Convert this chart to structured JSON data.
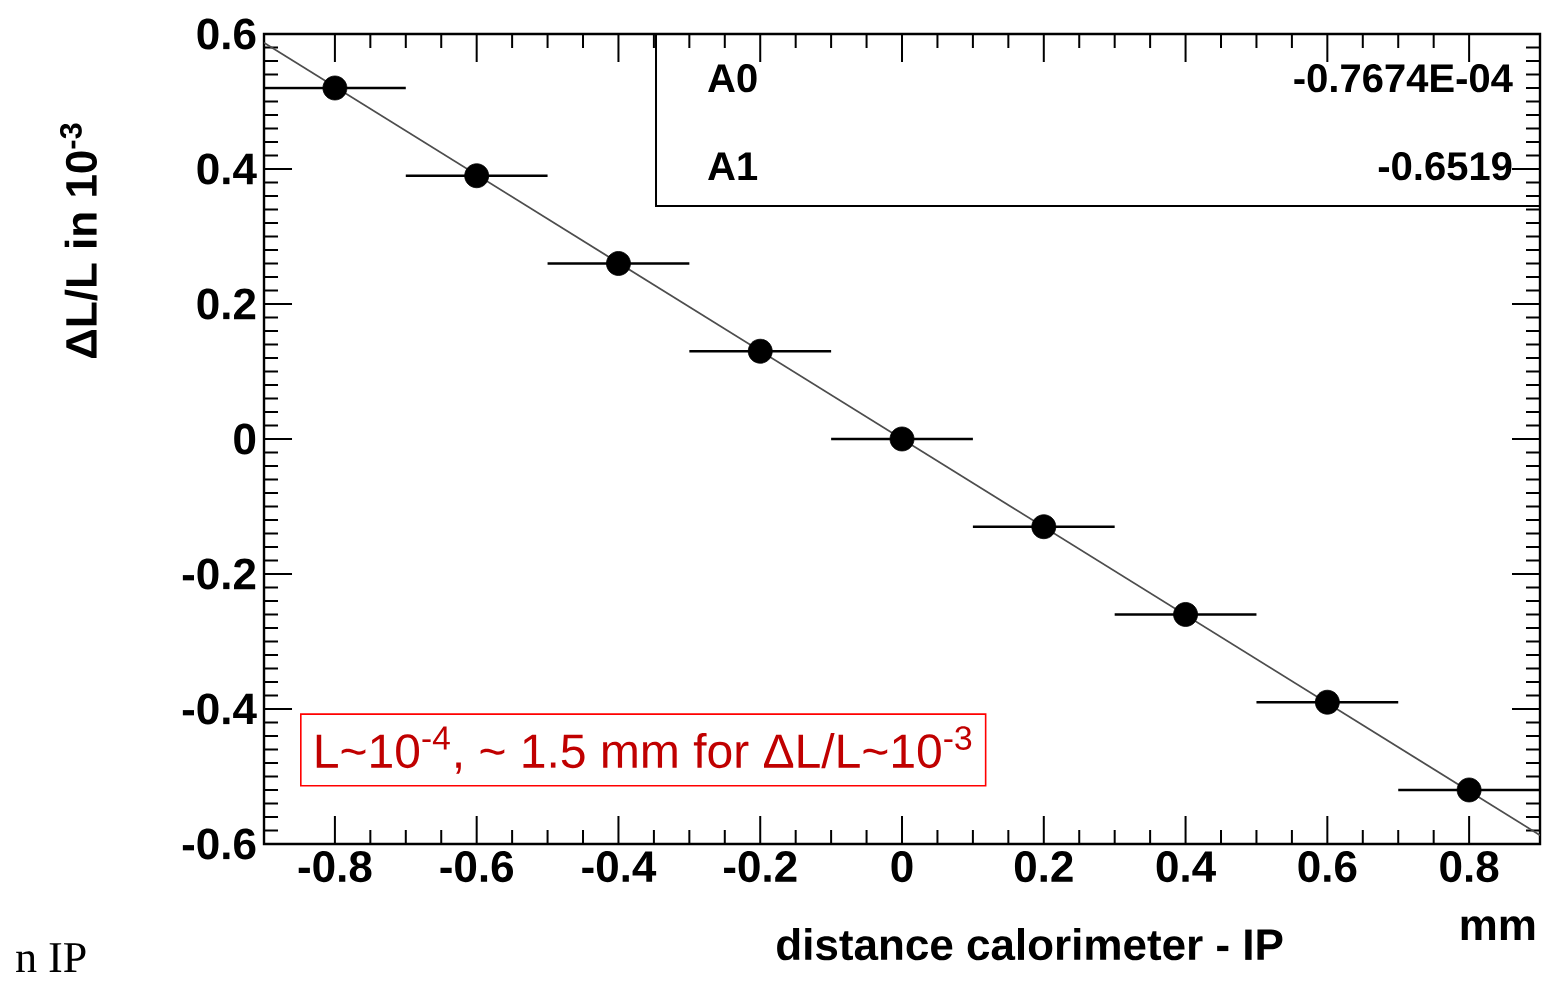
{
  "chart_data": {
    "type": "scatter",
    "xlabel": "distance calorimeter - IP",
    "ylabel": "ΔL/L in 10$^{-3}$",
    "xlim": [
      -0.9,
      0.9
    ],
    "ylim": [
      -0.6,
      0.6
    ],
    "xticks": [
      -0.8,
      -0.6,
      -0.4,
      -0.2,
      0,
      0.2,
      0.4,
      0.6,
      0.8
    ],
    "yticks": [
      -0.6,
      -0.4,
      -0.2,
      0,
      0.2,
      0.4,
      0.6
    ],
    "series": [
      {
        "marker": "circle",
        "color": "#000000",
        "x": [
          -0.8,
          -0.6,
          -0.4,
          -0.2,
          0,
          0.2,
          0.4,
          0.6,
          0.8
        ],
        "values": [
          0.52,
          0.39,
          0.26,
          0.13,
          0,
          -0.13,
          -0.26,
          -0.39,
          -0.52
        ],
        "xerrors": [
          0.1,
          0.1,
          0.1,
          0.1,
          0.1,
          0.1,
          0.1,
          0.1,
          0.1
        ]
      },
      {
        "type": "line",
        "marker": "none",
        "color": "#4d4d4d",
        "x": [
          -0.9,
          0.9
        ],
        "values": [
          0.587,
          -0.587
        ]
      }
    ],
    "annotations": [
      "mm",
      "A0",
      "-0.7674E-04",
      "A1",
      "-0.6519",
      "L~10$^{-4}$, ~ 1.5 mm for ΔL/L~10$^{-3}$",
      "n IP"
    ]
  }
}
